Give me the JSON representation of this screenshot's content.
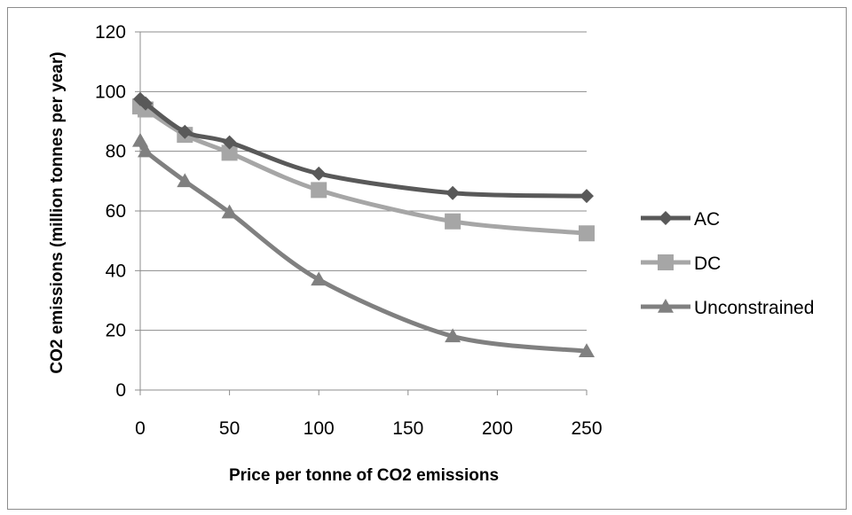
{
  "chart_data": {
    "type": "line",
    "title": "",
    "xlabel": "Price per tonne of CO2 emissions",
    "ylabel": "CO2 emissions (million tonnes per year)",
    "xlim": [
      0,
      250
    ],
    "ylim": [
      0,
      120
    ],
    "x_ticks": [
      "0",
      "50",
      "100",
      "150",
      "200",
      "250"
    ],
    "y_ticks": [
      "0",
      "20",
      "40",
      "60",
      "80",
      "100",
      "120"
    ],
    "grid": "horizontal",
    "legend_position": "right",
    "series": [
      {
        "name": "AC",
        "marker": "diamond",
        "color": "#595959",
        "x": [
          0,
          3,
          25,
          50,
          100,
          175,
          250
        ],
        "y": [
          97.5,
          96,
          86.5,
          83,
          72.5,
          66,
          65
        ]
      },
      {
        "name": "DC",
        "marker": "square",
        "color": "#a6a6a6",
        "x": [
          0,
          3,
          25,
          50,
          100,
          175,
          250
        ],
        "y": [
          95,
          94,
          85.5,
          79.5,
          67,
          56.5,
          52.5
        ]
      },
      {
        "name": "Unconstrained",
        "marker": "triangle",
        "color": "#808080",
        "x": [
          0,
          3,
          25,
          50,
          100,
          175,
          250
        ],
        "y": [
          83.5,
          80,
          70,
          59.5,
          37,
          18,
          13
        ]
      }
    ]
  }
}
